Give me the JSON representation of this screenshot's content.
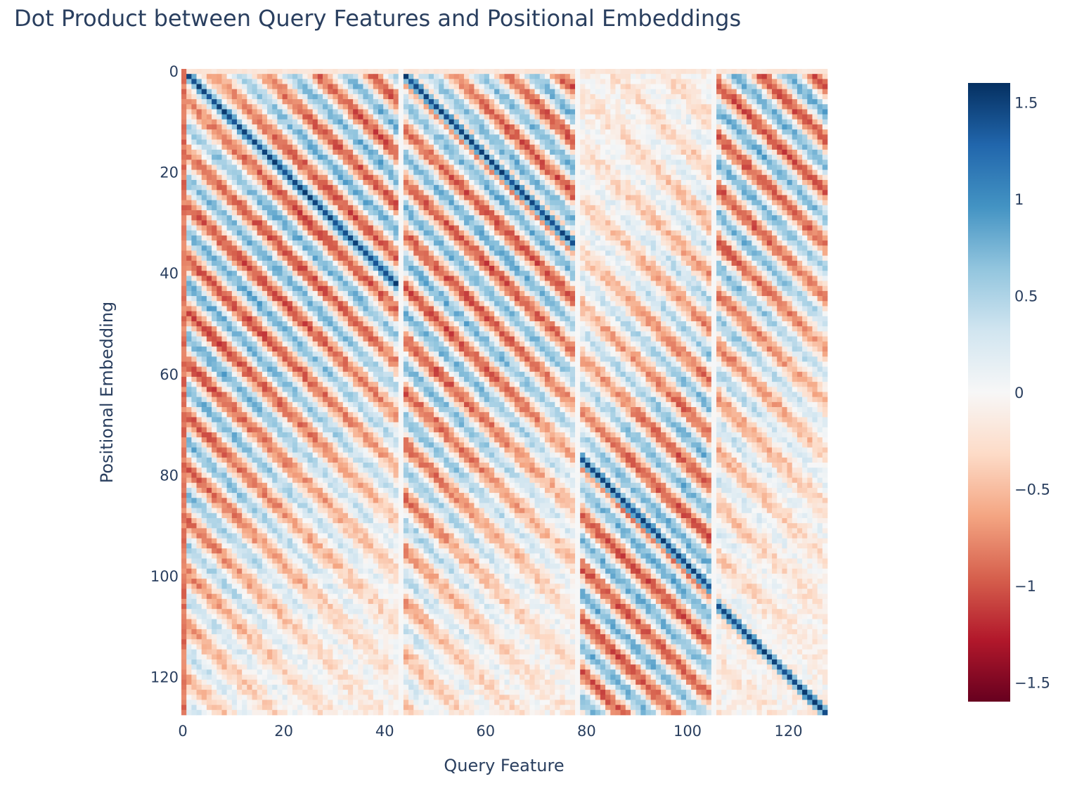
{
  "chart_data": {
    "type": "heatmap",
    "title": "Dot Product between Query Features and Positional Embeddings",
    "xlabel": "Query Feature",
    "ylabel": "Positional Embedding",
    "x_range": [
      0,
      127
    ],
    "y_range": [
      0,
      127
    ],
    "y_reversed": true,
    "n_cols": 128,
    "n_rows": 128,
    "x_ticks": [
      {
        "value": 0,
        "label": "0"
      },
      {
        "value": 20,
        "label": "20"
      },
      {
        "value": 40,
        "label": "40"
      },
      {
        "value": 60,
        "label": "60"
      },
      {
        "value": 80,
        "label": "80"
      },
      {
        "value": 100,
        "label": "100"
      },
      {
        "value": 120,
        "label": "120"
      }
    ],
    "y_ticks": [
      {
        "value": 0,
        "label": "0"
      },
      {
        "value": 20,
        "label": "20"
      },
      {
        "value": 40,
        "label": "40"
      },
      {
        "value": 60,
        "label": "60"
      },
      {
        "value": 80,
        "label": "80"
      },
      {
        "value": 100,
        "label": "100"
      },
      {
        "value": 120,
        "label": "120"
      }
    ],
    "colorscale": "RdBu",
    "colorscale_stops": [
      [
        0.0,
        "#67001f"
      ],
      [
        0.1,
        "#b2182b"
      ],
      [
        0.2,
        "#d6604d"
      ],
      [
        0.3,
        "#f4a582"
      ],
      [
        0.4,
        "#fddbc7"
      ],
      [
        0.5,
        "#f7f7f7"
      ],
      [
        0.6,
        "#d1e5f0"
      ],
      [
        0.7,
        "#92c5de"
      ],
      [
        0.8,
        "#4393c3"
      ],
      [
        0.9,
        "#2166ac"
      ],
      [
        1.0,
        "#053061"
      ]
    ],
    "zmin": -1.6,
    "zmax": 1.6,
    "colorbar_ticks": [
      {
        "value": 1.5,
        "label": "1.5"
      },
      {
        "value": 1,
        "label": "1"
      },
      {
        "value": 0.5,
        "label": "0.5"
      },
      {
        "value": 0,
        "label": "0"
      },
      {
        "value": -0.5,
        "label": "−0.5"
      },
      {
        "value": -1,
        "label": "−1"
      },
      {
        "value": -1.5,
        "label": "−1.5"
      }
    ],
    "blocks": [
      {
        "col_start": 0,
        "col_end": 42,
        "diag_offset": 0
      },
      {
        "col_start": 43,
        "col_end": 77,
        "diag_offset": 43
      },
      {
        "col_start": 78,
        "col_end": 104,
        "diag_offset": 2
      },
      {
        "col_start": 105,
        "col_end": 127,
        "diag_offset": 0
      }
    ],
    "blank_columns": [
      43,
      78,
      105
    ],
    "note_values": "Approximate cell values: strong positive diagonal per block (~1.4), parallel alternating stripes of ±0.5–1.3"
  }
}
